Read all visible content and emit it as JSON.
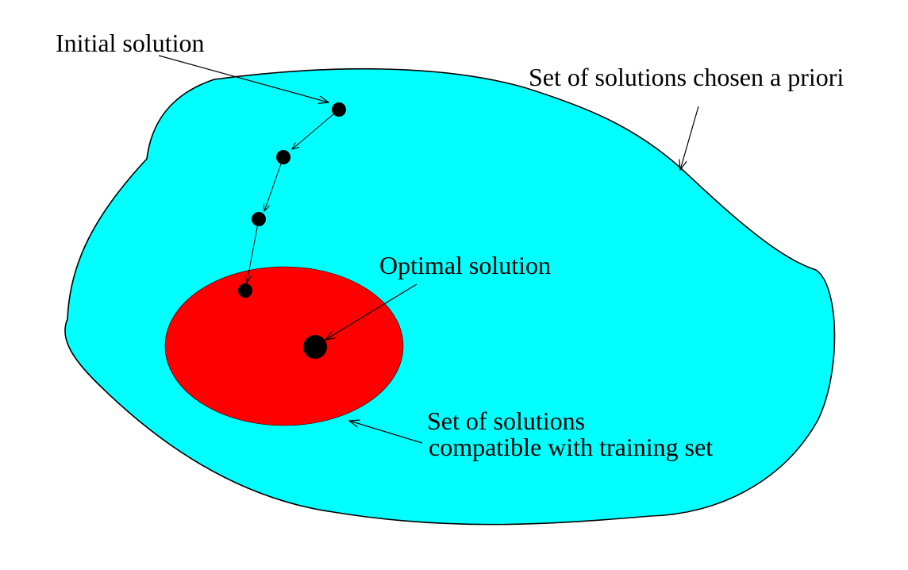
{
  "labels": {
    "initial": "Initial solution",
    "apriori": "Set of solutions chosen a priori",
    "optimal": "Optimal solution",
    "compatible_line1": "Set of solutions",
    "compatible_line2": "compatible with training set"
  },
  "colors": {
    "outer_region": "#00ffff",
    "inner_region": "#ff0000",
    "outline": "#000000",
    "points": "#000000",
    "background": "#ffffff"
  },
  "path_points": 4
}
